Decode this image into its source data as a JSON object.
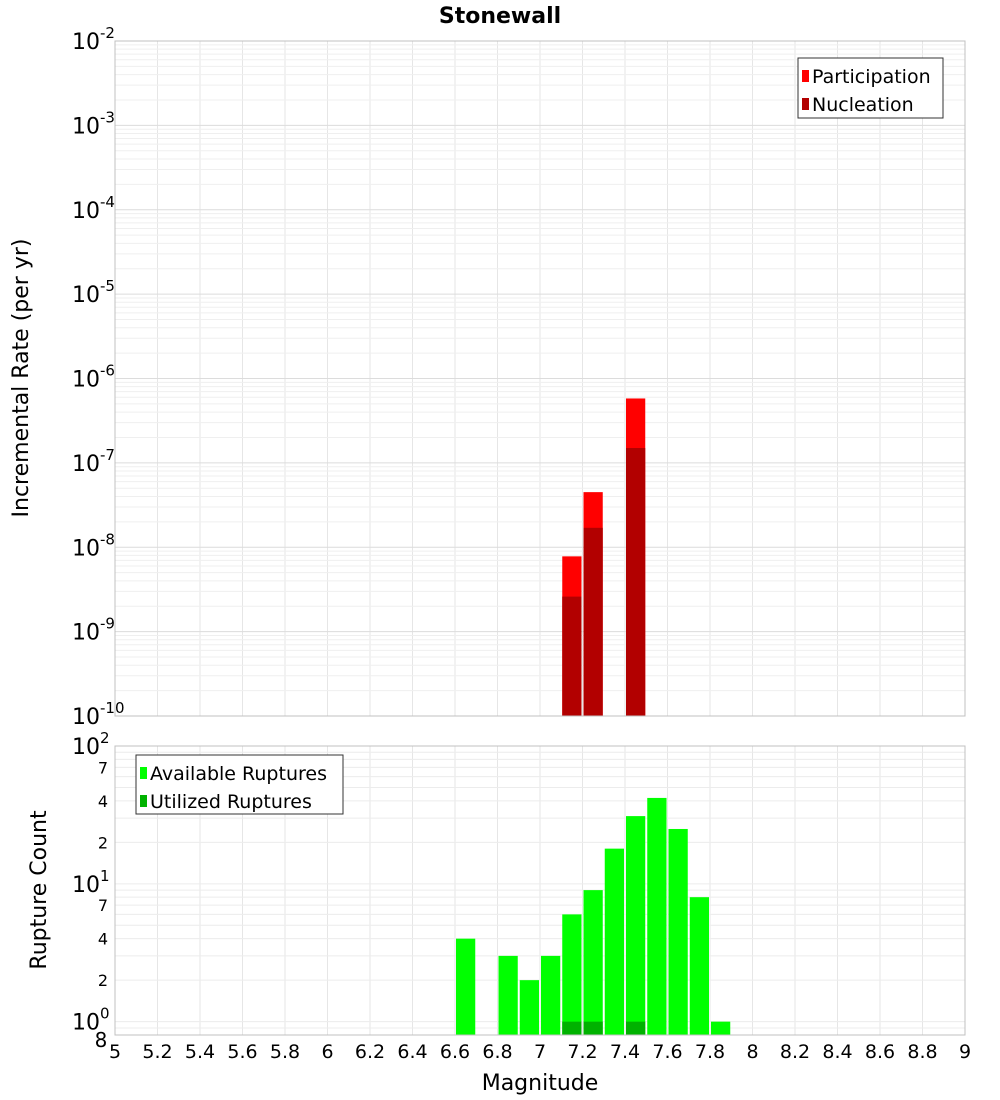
{
  "chart_data": [
    {
      "type": "bar",
      "title": "Stonewall",
      "ylabel": "Incremental Rate (per yr)",
      "xlabel": "",
      "y_scale": "log",
      "xlim": [
        5,
        9
      ],
      "ylim": [
        1e-10,
        0.01
      ],
      "grid": true,
      "legend_placement": "top-right",
      "y_tick_labels": [
        {
          "base": "10",
          "exp": "-2"
        },
        {
          "base": "10",
          "exp": "-3"
        },
        {
          "base": "10",
          "exp": "-4"
        },
        {
          "base": "10",
          "exp": "-5"
        },
        {
          "base": "10",
          "exp": "-6"
        },
        {
          "base": "10",
          "exp": "-7"
        },
        {
          "base": "10",
          "exp": "-8"
        },
        {
          "base": "10",
          "exp": "-9"
        },
        {
          "base": "10",
          "exp": "-10"
        }
      ],
      "series": [
        {
          "name": "Participation",
          "color": "#ff0000",
          "x": [
            7.15,
            7.25,
            7.45
          ],
          "values": [
            7.8e-09,
            4.5e-08,
            5.8e-07
          ]
        },
        {
          "name": "Nucleation",
          "color": "#b20000",
          "x": [
            7.15,
            7.25,
            7.45
          ],
          "values": [
            2.6e-09,
            1.7e-08,
            1.5e-07
          ]
        }
      ]
    },
    {
      "type": "bar",
      "title": "",
      "ylabel": "Rupture Count",
      "xlabel": "Magnitude",
      "y_scale": "log",
      "xlim": [
        5,
        9
      ],
      "ylim": [
        0.8,
        100
      ],
      "grid": true,
      "legend_placement": "top-left",
      "x_tick_labels": [
        "5",
        "5.2",
        "5.4",
        "5.6",
        "5.8",
        "6",
        "6.2",
        "6.4",
        "6.6",
        "6.8",
        "7",
        "7.2",
        "7.4",
        "7.6",
        "7.8",
        "8",
        "8.2",
        "8.4",
        "8.6",
        "8.8",
        "9"
      ],
      "y_major_tick_labels": [
        {
          "base": "10",
          "exp": "2"
        },
        {
          "base": "10",
          "exp": "1"
        },
        {
          "base": "10",
          "exp": "0"
        }
      ],
      "y_minor_tick_labels": [
        "7",
        "4",
        "2",
        "7",
        "4",
        "2",
        "8"
      ],
      "series": [
        {
          "name": "Available Ruptures",
          "color": "#00ff00",
          "x": [
            6.65,
            6.85,
            6.95,
            7.05,
            7.15,
            7.25,
            7.35,
            7.45,
            7.55,
            7.65,
            7.75,
            7.85
          ],
          "values": [
            4,
            3,
            2,
            3,
            6,
            9,
            18,
            31,
            42,
            25,
            8,
            1
          ]
        },
        {
          "name": "Utilized Ruptures",
          "color": "#00b200",
          "x": [
            7.15,
            7.25,
            7.45
          ],
          "values": [
            1,
            1,
            1
          ]
        }
      ]
    }
  ]
}
